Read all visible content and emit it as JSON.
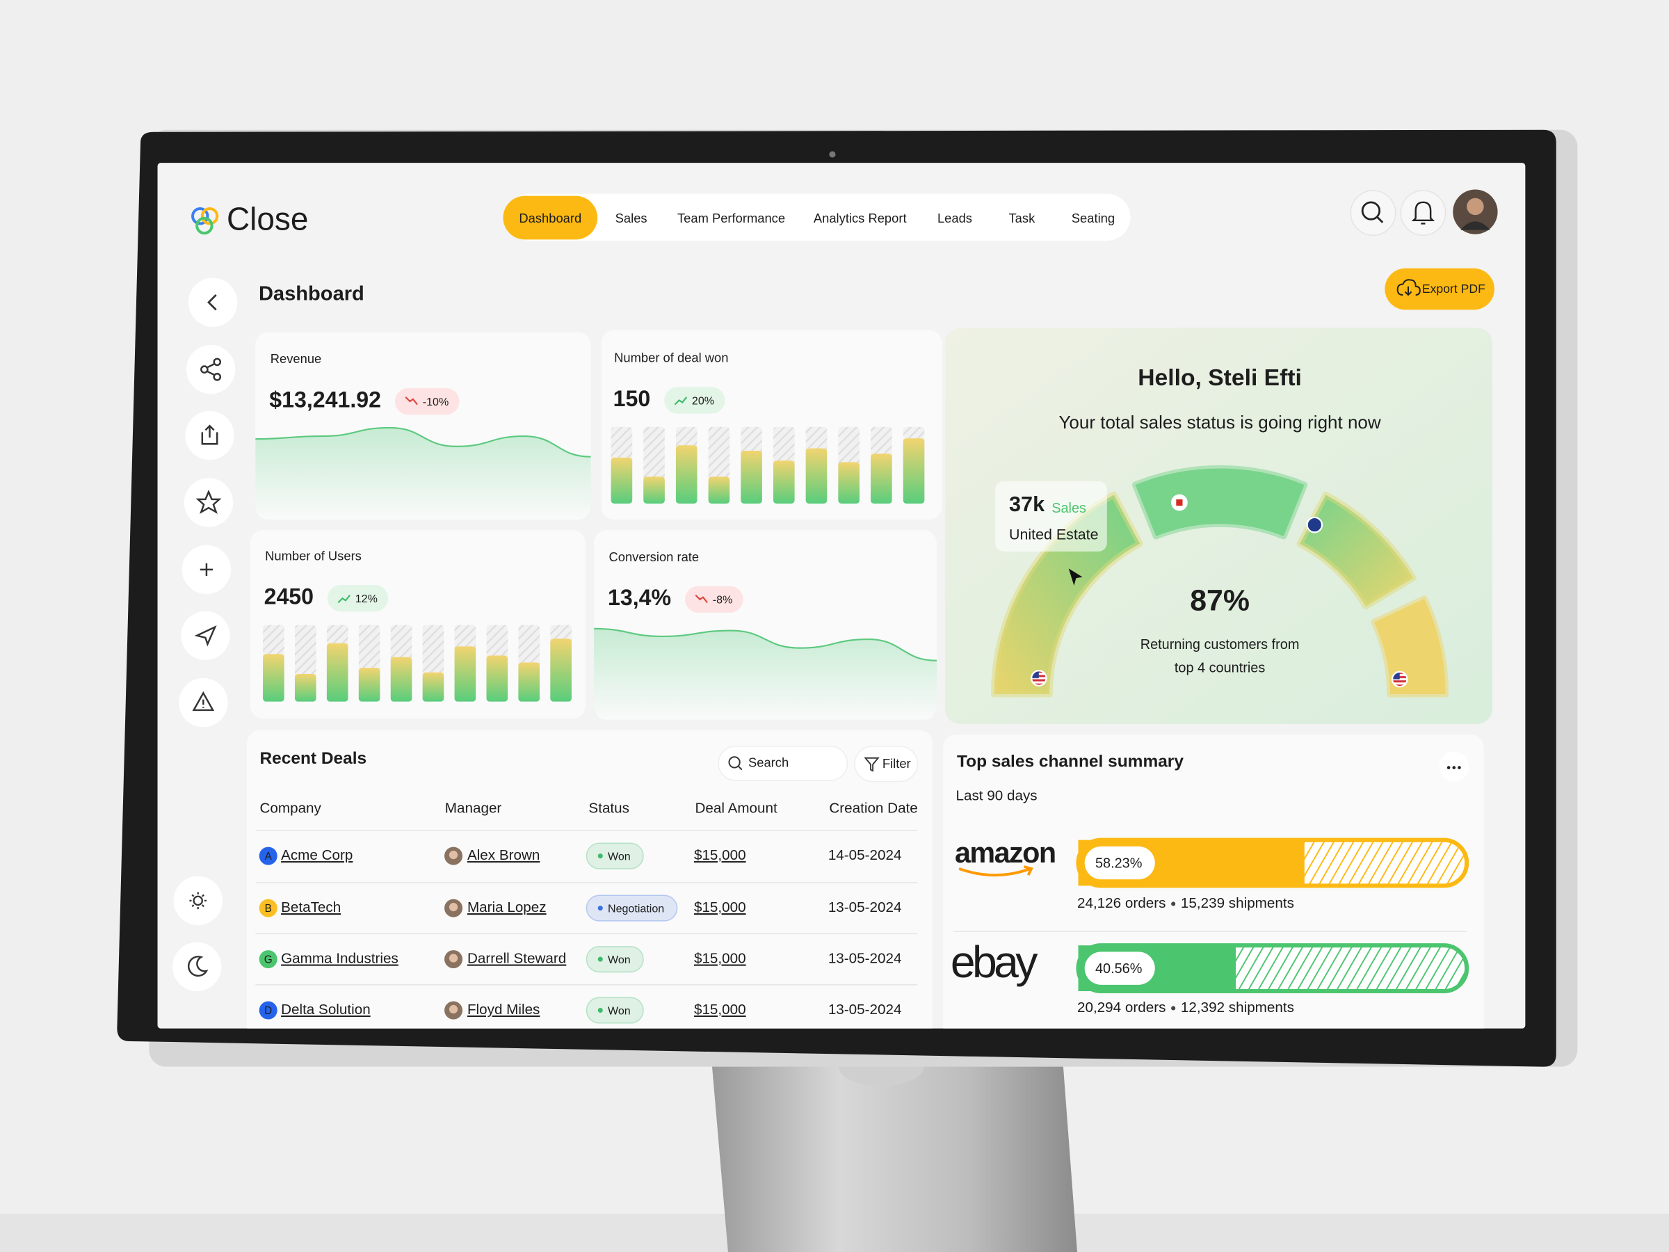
{
  "brand": "Close",
  "nav": {
    "items": [
      "Dashboard",
      "Sales",
      "Team Performance",
      "Analytics Report",
      "Leads",
      "Task",
      "Seating"
    ],
    "active": 0
  },
  "header": {
    "title": "Dashboard",
    "export_button": "Export PDF"
  },
  "stats": [
    {
      "label": "Revenue",
      "value": "$13,241.92",
      "change": "-10%",
      "trend": "down",
      "chart": {
        "type": "area",
        "ylim": [
          0,
          100
        ],
        "values": [
          86,
          89,
          98,
          78,
          89,
          67
        ]
      }
    },
    {
      "label": "Number of deal won",
      "value": "150",
      "change": "20%",
      "trend": "up",
      "chart": {
        "type": "bar",
        "ylim": [
          0,
          100
        ],
        "values": [
          60,
          35,
          76,
          35,
          69,
          56,
          72,
          54,
          65,
          85
        ]
      }
    },
    {
      "label": "Number of Users",
      "value": "2450",
      "change": "12%",
      "trend": "up",
      "chart": {
        "type": "bar",
        "ylim": [
          0,
          100
        ],
        "values": [
          62,
          36,
          76,
          44,
          58,
          38,
          72,
          60,
          51,
          82
        ]
      }
    },
    {
      "label": "Conversion rate",
      "value": "13,4%",
      "change": "-8%",
      "trend": "down",
      "chart": {
        "type": "area",
        "ylim": [
          0,
          100
        ],
        "values": [
          94,
          86,
          92,
          74,
          83,
          61
        ]
      }
    }
  ],
  "greeting": {
    "title": "Hello, Steli Efti",
    "subtitle": "Your total sales status is going right now",
    "percent": "87%",
    "caption": [
      "Returning customers from",
      "top 4 countries"
    ],
    "tooltip": {
      "value": "37k",
      "unit": "Sales",
      "country": "United Estate"
    }
  },
  "deals": {
    "title": "Recent Deals",
    "search": "Search",
    "filter": "Filter",
    "columns": [
      "Company",
      "Manager",
      "Status",
      "Deal Amount",
      "Creation Date"
    ],
    "rows": [
      {
        "initial": "A",
        "color": "#2563eb",
        "company": "Acme Corp",
        "manager": "Alex Brown",
        "status": "Won",
        "status_color": "#3dbb6a",
        "amount": "$15,000",
        "date": "14-05-2024"
      },
      {
        "initial": "B",
        "color": "#fbbf24",
        "company": "BetaTech",
        "manager": "Maria Lopez",
        "status": "Negotiation",
        "status_color": "#3b6fe0",
        "amount": "$15,000",
        "date": "13-05-2024"
      },
      {
        "initial": "G",
        "color": "#4cc56f",
        "company": "Gamma Industries",
        "manager": "Darrell Steward",
        "status": "Won",
        "status_color": "#3dbb6a",
        "amount": "$15,000",
        "date": "13-05-2024"
      },
      {
        "initial": "D",
        "color": "#2563eb",
        "company": "Delta Solution",
        "manager": "Floyd Miles",
        "status": "Won",
        "status_color": "#3dbb6a",
        "amount": "$15,000",
        "date": "13-05-2024"
      }
    ]
  },
  "channels": {
    "title": "Top sales channel summary",
    "period": "Last 90 days",
    "items": [
      {
        "name": "amazon",
        "share": {
          "value": 58.23,
          "label": "58.23%"
        },
        "orders": "24,126 orders",
        "shipments": "15,239 shipments",
        "color": "#fdb913"
      },
      {
        "name": "ebay",
        "share": {
          "value": 40.56,
          "label": "40.56%"
        },
        "orders": "20,294 orders",
        "shipments": "12,392 shipments",
        "color": "#4cc56f"
      }
    ]
  }
}
